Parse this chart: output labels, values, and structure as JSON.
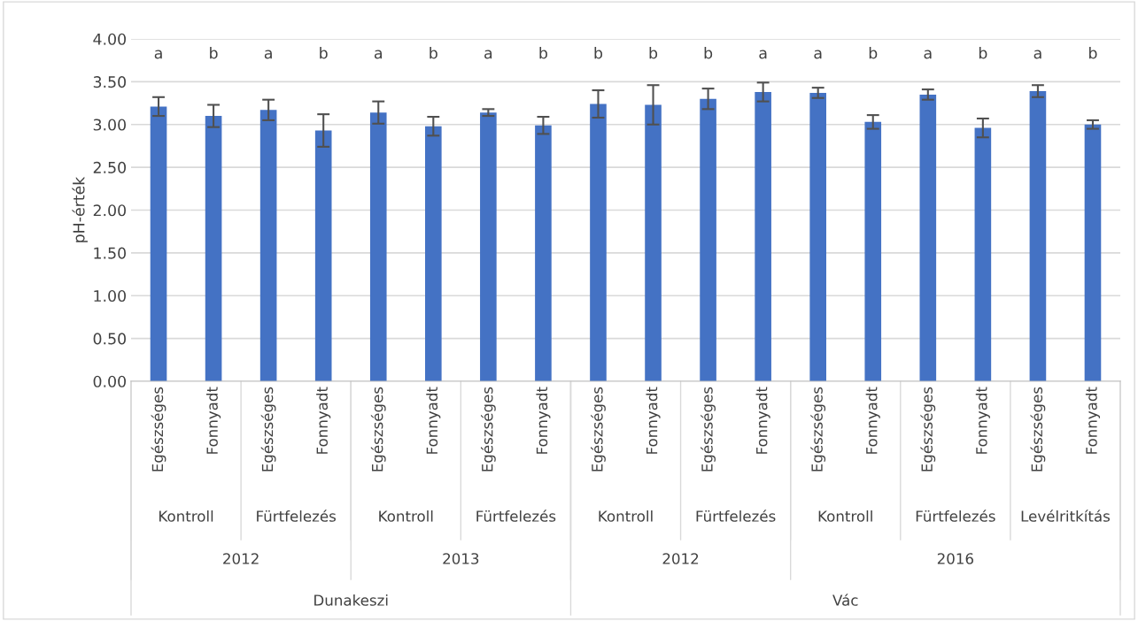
{
  "chart_data": {
    "type": "bar",
    "ylabel": "pH-érték",
    "categories": [
      "Egészséges",
      "Fonnyadt",
      "Egészséges",
      "Fonnyadt",
      "Egészséges",
      "Fonnyadt",
      "Egészséges",
      "Fonnyadt",
      "Egészséges",
      "Fonnyadt",
      "Egészséges",
      "Fonnyadt",
      "Egészséges",
      "Fonnyadt",
      "Egészséges",
      "Fonnyadt",
      "Egészséges",
      "Fonnyadt"
    ],
    "values": [
      3.21,
      3.1,
      3.17,
      2.93,
      3.14,
      2.98,
      3.14,
      2.99,
      3.24,
      3.23,
      3.3,
      3.38,
      3.37,
      3.03,
      3.35,
      2.96,
      3.39,
      3.0
    ],
    "errors": [
      0.11,
      0.13,
      0.12,
      0.19,
      0.13,
      0.11,
      0.04,
      0.1,
      0.16,
      0.23,
      0.12,
      0.11,
      0.06,
      0.08,
      0.06,
      0.11,
      0.07,
      0.05
    ],
    "color": "#4472c4",
    "ylim": [
      0,
      4
    ],
    "yticks": [
      {
        "value": 0,
        "label": "0.00"
      },
      {
        "value": 0.5,
        "label": "0.50"
      },
      {
        "value": 1,
        "label": "1.00"
      },
      {
        "value": 1.5,
        "label": "1.50"
      },
      {
        "value": 2,
        "label": "2.00"
      },
      {
        "value": 2.5,
        "label": "2.50"
      },
      {
        "value": 3,
        "label": "3.00"
      },
      {
        "value": 3.5,
        "label": "3.50"
      },
      {
        "value": 4,
        "label": "4.00"
      }
    ],
    "grid": "y",
    "annotations": [
      "a",
      "b",
      "a",
      "b",
      "a",
      "b",
      "a",
      "b",
      "b",
      "b",
      "b",
      "a",
      "a",
      "b",
      "a",
      "b",
      "a",
      "b",
      "Kontroll",
      "Fürtfelezés",
      "Kontroll",
      "Fürtfelezés",
      "Kontroll",
      "Fürtfelezés",
      "Kontroll",
      "Fürtfelezés",
      "Levélritkítás",
      "2012",
      "2013",
      "2012",
      "2016",
      "Dunakeszi",
      "Vác"
    ]
  }
}
